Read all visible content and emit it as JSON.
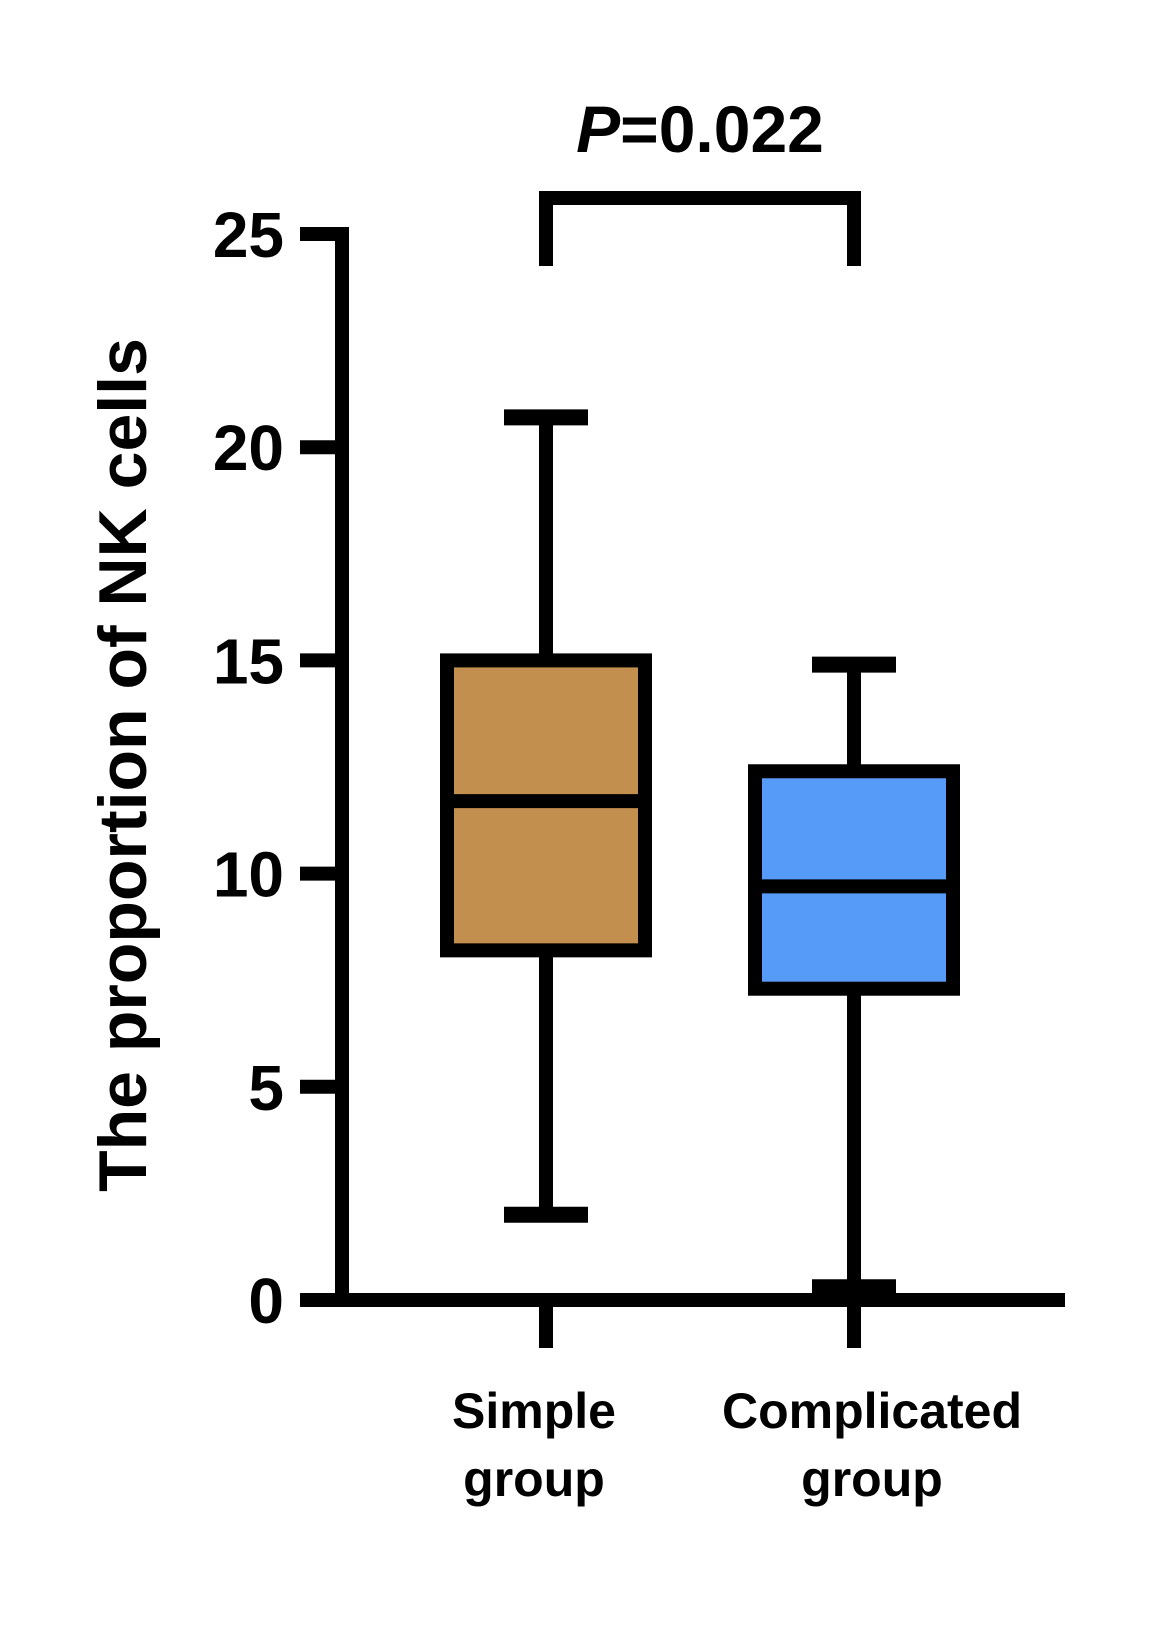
{
  "chart_data": {
    "type": "box",
    "ylabel": "The proportion of NK cells",
    "ylim": [
      0,
      25
    ],
    "yticks": [
      "0",
      "5",
      "10",
      "15",
      "20",
      "25"
    ],
    "categories": [
      [
        "Simple",
        "group"
      ],
      [
        "Complicated",
        "group"
      ]
    ],
    "boxes": [
      {
        "min": 2.0,
        "q1": 8.2,
        "median": 11.7,
        "q3": 15.0,
        "max": 20.7,
        "color": "#C28F4E"
      },
      {
        "min": 0.3,
        "q1": 7.3,
        "median": 9.7,
        "q3": 12.4,
        "max": 14.9,
        "color": "#569BF8"
      }
    ],
    "significance": {
      "prefix": "P",
      "suffix": "=0.022",
      "between": [
        0,
        1
      ]
    },
    "grid": false,
    "legend": "none"
  }
}
